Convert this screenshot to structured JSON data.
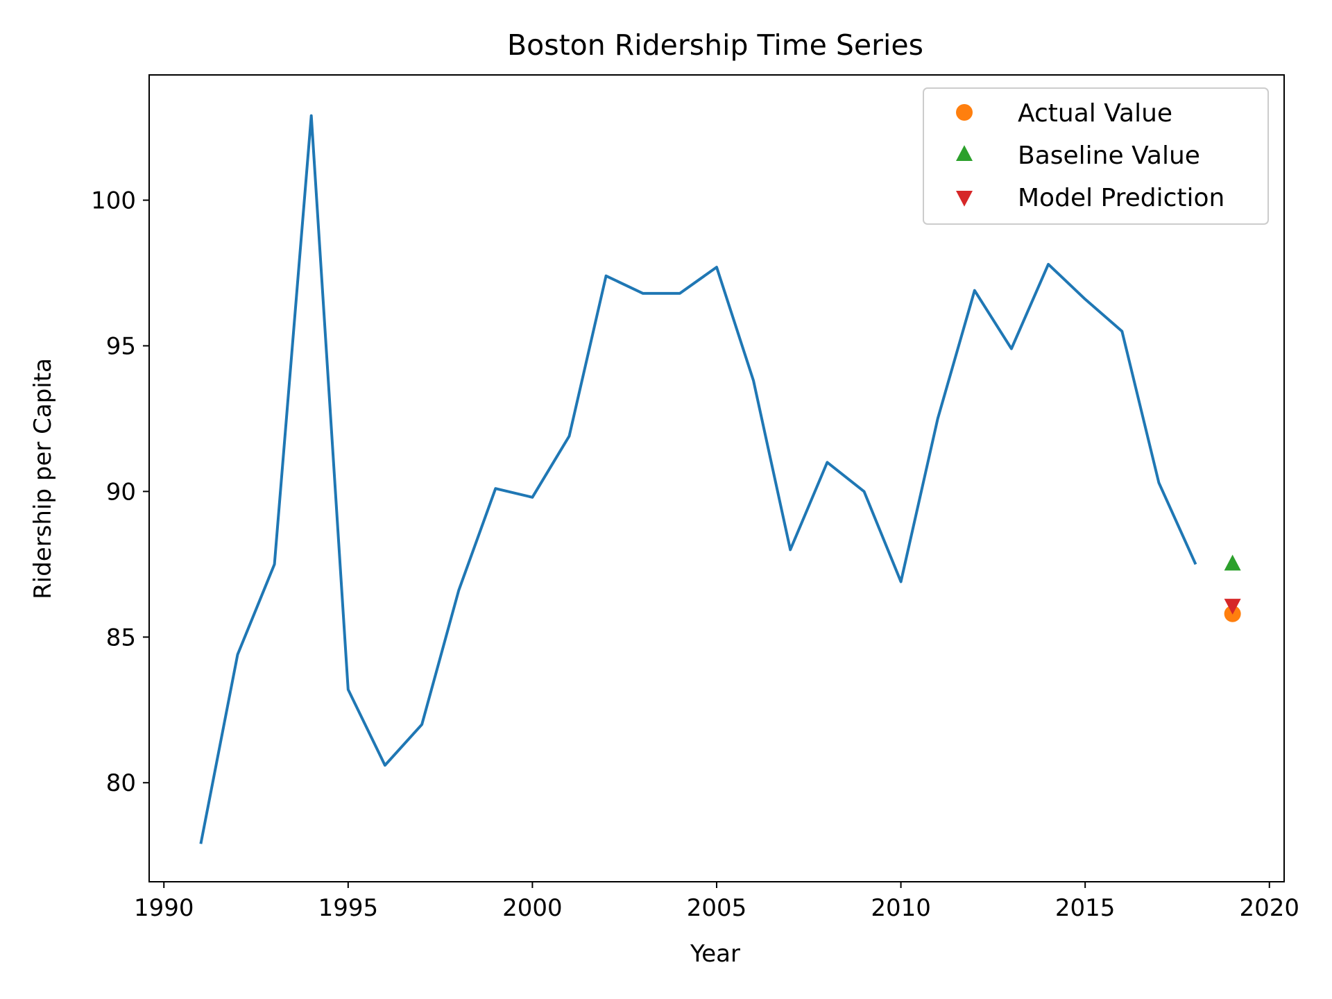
{
  "chart_data": {
    "type": "line",
    "title": "Boston Ridership Time Series",
    "xlabel": "Year",
    "ylabel": "Ridership per Capita",
    "xlim": [
      1989.6,
      2020.4
    ],
    "ylim": [
      76.6,
      104.3
    ],
    "xticks": [
      1990,
      1995,
      2000,
      2005,
      2010,
      2015,
      2020
    ],
    "yticks": [
      80,
      85,
      90,
      95,
      100
    ],
    "grid": false,
    "legend_position": "top-right",
    "series": [
      {
        "color": "#1f77b4",
        "x": [
          1991,
          1992,
          1993,
          1994,
          1995,
          1996,
          1997,
          1998,
          1999,
          2000,
          2001,
          2002,
          2003,
          2004,
          2005,
          2006,
          2007,
          2008,
          2009,
          2010,
          2011,
          2012,
          2013,
          2014,
          2015,
          2016,
          2017,
          2018
        ],
        "y": [
          77.9,
          84.4,
          87.5,
          102.9,
          83.2,
          80.6,
          82.0,
          86.6,
          90.1,
          89.8,
          91.9,
          97.4,
          96.8,
          96.8,
          97.7,
          93.8,
          88.0,
          91.0,
          90.0,
          86.9,
          92.5,
          96.9,
          94.9,
          97.8,
          96.6,
          95.5,
          90.3,
          87.5
        ]
      }
    ],
    "points": [
      {
        "name": "Actual Value",
        "x": 2019,
        "y": 85.8,
        "marker": "circle",
        "color": "#ff7f0e"
      },
      {
        "name": "Baseline Value",
        "x": 2019,
        "y": 87.5,
        "marker": "triangle-up",
        "color": "#2ca02c"
      },
      {
        "name": "Model Prediction",
        "x": 2019,
        "y": 86.1,
        "marker": "triangle-down",
        "color": "#d62728"
      }
    ]
  }
}
